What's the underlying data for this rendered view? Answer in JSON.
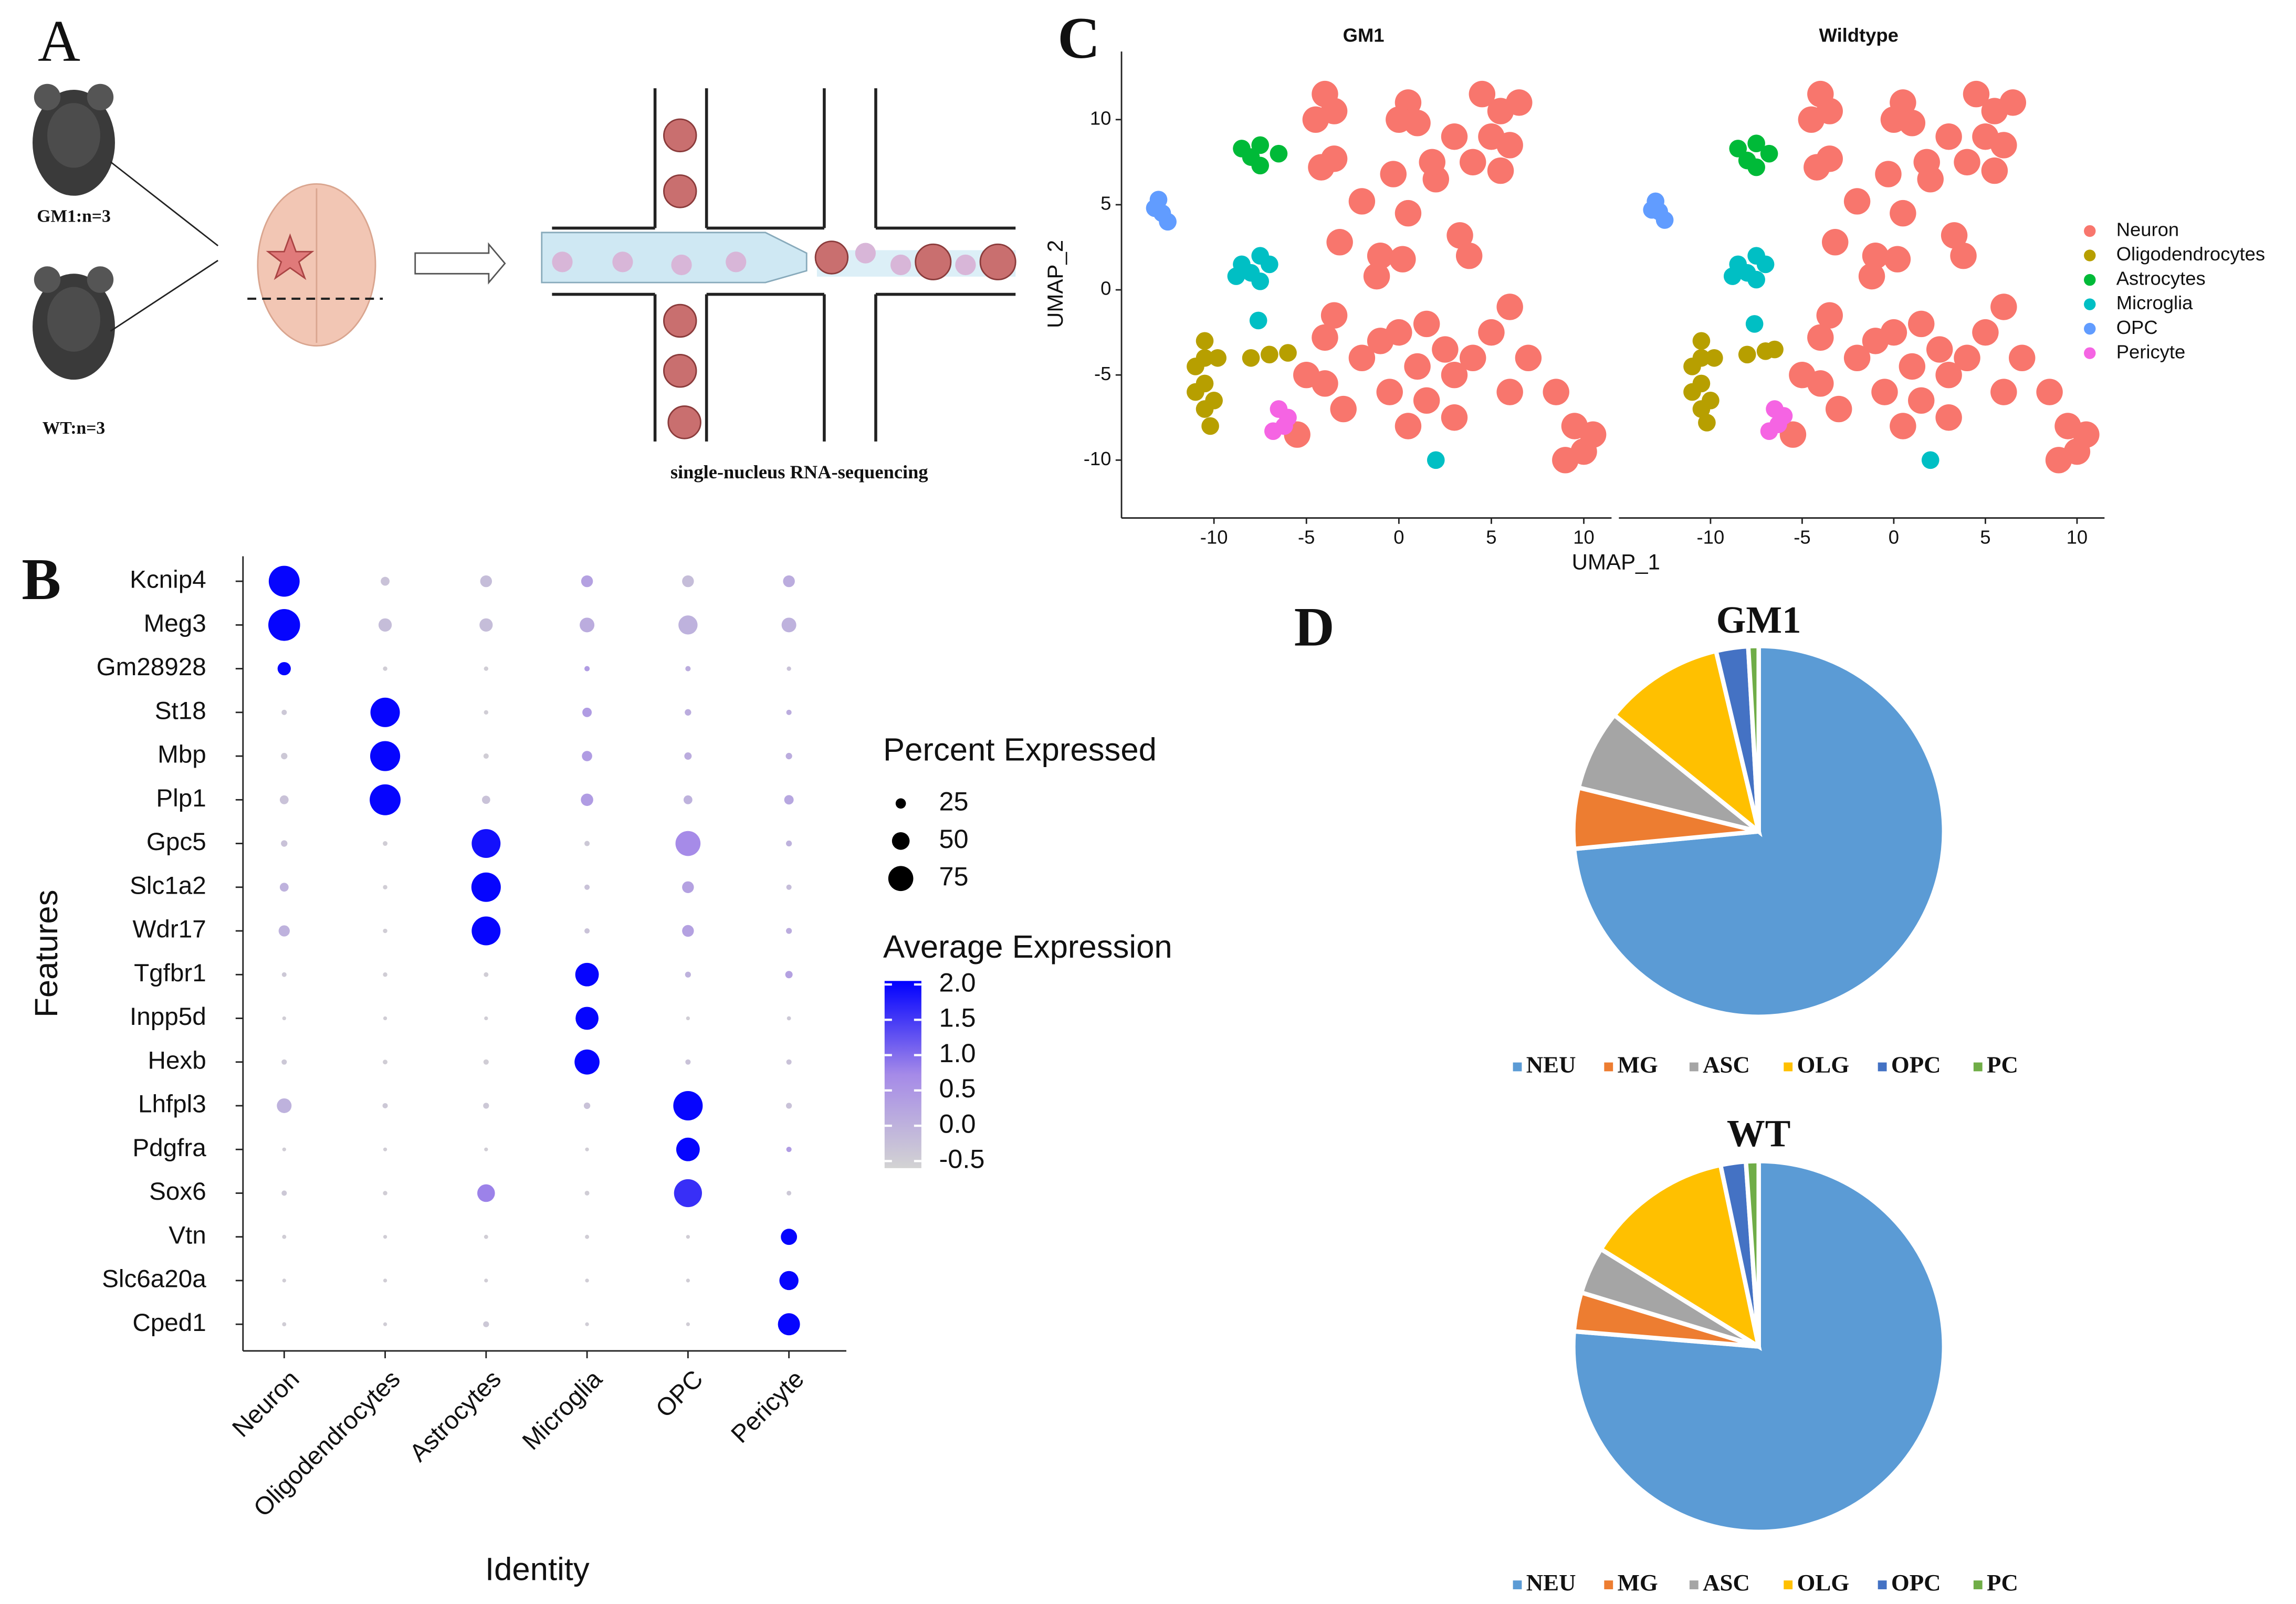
{
  "labels": {
    "panel_a": "A",
    "panel_b": "B",
    "panel_c": "C",
    "panel_d": "D",
    "gm1_group": "GM1:n=3",
    "wt_group": "WT:n=3",
    "sequencing": "single-nucleus RNA-sequencing"
  },
  "chart_data": [
    {
      "type": "dot",
      "x_label": "Identity",
      "y_label": "Features",
      "categories": [
        "Neuron",
        "Oligodendrocytes",
        "Astrocytes",
        "Microglia",
        "OPC",
        "Pericyte"
      ],
      "features": [
        "Kcnip4",
        "Meg3",
        "Gm28928",
        "St18",
        "Mbp",
        "Plp1",
        "Gpc5",
        "Slc1a2",
        "Wdr17",
        "Tgfbr1",
        "Inpp5d",
        "Hexb",
        "Lhfpl3",
        "Pdgfra",
        "Sox6",
        "Vtn",
        "Slc6a20a",
        "Cped1"
      ],
      "pct": [
        [
          95,
          20,
          30,
          30,
          30,
          30
        ],
        [
          98,
          35,
          35,
          40,
          55,
          40
        ],
        [
          35,
          5,
          5,
          8,
          8,
          5
        ],
        [
          8,
          90,
          5,
          22,
          12,
          8
        ],
        [
          12,
          92,
          8,
          25,
          15,
          12
        ],
        [
          20,
          95,
          18,
          32,
          20,
          22
        ],
        [
          12,
          6,
          88,
          8,
          75,
          10
        ],
        [
          20,
          5,
          90,
          8,
          30,
          8
        ],
        [
          28,
          5,
          88,
          8,
          30,
          10
        ],
        [
          6,
          5,
          6,
          70,
          10,
          15
        ],
        [
          3,
          3,
          3,
          68,
          3,
          4
        ],
        [
          8,
          6,
          8,
          75,
          8,
          8
        ],
        [
          40,
          8,
          10,
          12,
          90,
          10
        ],
        [
          3,
          3,
          3,
          3,
          70,
          8
        ],
        [
          8,
          5,
          50,
          6,
          85,
          6
        ],
        [
          4,
          3,
          4,
          4,
          3,
          45
        ],
        [
          3,
          3,
          3,
          3,
          3,
          55
        ],
        [
          4,
          3,
          10,
          3,
          3,
          65
        ]
      ],
      "avg": [
        [
          2.0,
          -0.3,
          -0.2,
          0.3,
          -0.2,
          0.1
        ],
        [
          2.0,
          -0.2,
          -0.2,
          0.1,
          0,
          0
        ],
        [
          2.0,
          -0.5,
          -0.5,
          0.4,
          0.1,
          -0.3
        ],
        [
          -0.4,
          2.0,
          -0.5,
          0.4,
          0.1,
          0.1
        ],
        [
          -0.4,
          2.0,
          -0.5,
          0.4,
          0.1,
          0.1
        ],
        [
          -0.3,
          2.0,
          -0.3,
          0.4,
          0,
          0.2
        ],
        [
          -0.3,
          -0.5,
          1.9,
          -0.4,
          0.7,
          0
        ],
        [
          0,
          -0.5,
          2.0,
          -0.3,
          0.3,
          -0.2
        ],
        [
          0,
          -0.5,
          2.0,
          -0.3,
          0.3,
          0.1
        ],
        [
          -0.4,
          -0.5,
          -0.5,
          2.0,
          0,
          0.3
        ],
        [
          -0.5,
          -0.5,
          -0.5,
          2.0,
          -0.5,
          -0.4
        ],
        [
          -0.4,
          -0.5,
          -0.5,
          2.0,
          -0.3,
          -0.3
        ],
        [
          0,
          -0.4,
          -0.4,
          -0.3,
          2.0,
          -0.3
        ],
        [
          -0.5,
          -0.5,
          -0.5,
          -0.5,
          2.0,
          0.4
        ],
        [
          -0.4,
          -0.5,
          0.8,
          -0.5,
          1.6,
          -0.4
        ],
        [
          -0.5,
          -0.5,
          -0.5,
          -0.5,
          -0.5,
          2.0
        ],
        [
          -0.5,
          -0.5,
          -0.5,
          -0.5,
          -0.5,
          2.0
        ],
        [
          -0.5,
          -0.5,
          -0.4,
          -0.5,
          -0.5,
          2.0
        ]
      ],
      "size_legend": {
        "title": "Percent Expressed",
        "values": [
          25,
          50,
          75
        ]
      },
      "color_legend": {
        "title": "Average Expression",
        "clim": [
          -0.6,
          2.05
        ],
        "colors": [
          "#d3d3d3",
          "#a58ae8",
          "#0000ff"
        ],
        "ticks": [
          {
            "value": 2,
            "label": "2.0"
          },
          1.5,
          {
            "value": 1,
            "label": "1.0"
          },
          0.5,
          {
            "value": 0,
            "label": "0.0"
          },
          -0.5
        ]
      }
    },
    {
      "type": "scatter",
      "title": "GM1",
      "x_label": "UMAP_1",
      "y_label": "UMAP_2",
      "xlim": [
        -15,
        11.5
      ],
      "ylim": [
        -13.4,
        14
      ],
      "xticks": [
        -10,
        -5,
        0,
        5,
        10
      ],
      "yticks": [
        -10,
        -5,
        0,
        5,
        10
      ],
      "series": [
        {
          "name": "Neuron",
          "color": "#F8766D",
          "x": [
            -4,
            -4.5,
            -3.5,
            0.5,
            0,
            1,
            4.5,
            5.5,
            6.5,
            5,
            6,
            4,
            5.5,
            3,
            2,
            1.8,
            -3.5,
            -4.2,
            -0.3,
            -1,
            -1.2,
            -3.2,
            0.2,
            3.3,
            3.8,
            -3.5,
            -4,
            -2,
            -1,
            0,
            1.5,
            2.5,
            1,
            3,
            4,
            5,
            6,
            7,
            -0.5,
            1.5,
            -3,
            -4,
            -5.5,
            0.5,
            3,
            8.5,
            9.5,
            10,
            9,
            10.5,
            -2,
            0.5,
            -5,
            6
          ],
          "values": [
            11.5,
            10,
            10.5,
            11,
            10,
            9.8,
            11.5,
            10.5,
            11,
            9,
            8.5,
            7.5,
            7,
            9,
            6.5,
            7.5,
            7.7,
            7.2,
            6.8,
            2,
            0.8,
            2.8,
            1.8,
            3.2,
            2,
            -1.5,
            -2.8,
            -4,
            -3,
            -2.5,
            -2,
            -3.5,
            -4.5,
            -5,
            -4,
            -2.5,
            -1,
            -4,
            -6,
            -6.5,
            -7,
            -5.5,
            -8.5,
            -8,
            -7.5,
            -6,
            -8,
            -9.5,
            -10,
            -8.5,
            5.2,
            4.5,
            -5,
            -6
          ]
        },
        {
          "name": "Oligodendrocytes",
          "color": "#B79F00",
          "x": [
            -10.5,
            -10.5,
            -10.5,
            -10.5,
            -11,
            -10,
            -11,
            -9.8,
            -10.2,
            -7,
            -8,
            -6
          ],
          "values": [
            -3,
            -4,
            -5.5,
            -7,
            -6,
            -6.5,
            -4.5,
            -4,
            -8,
            -3.8,
            -4,
            -3.7
          ]
        },
        {
          "name": "Astrocytes",
          "color": "#00BA38",
          "x": [
            -8.5,
            -7.5,
            -6.5,
            -7.5,
            -8
          ],
          "values": [
            8.3,
            8.5,
            8,
            7.3,
            7.8
          ]
        },
        {
          "name": "Microglia",
          "color": "#00BFC4",
          "x": [
            -8.5,
            -7.5,
            -8,
            -7,
            -8.8,
            -7.5,
            -7.6,
            2
          ],
          "values": [
            1.5,
            2,
            1,
            1.5,
            0.8,
            0.5,
            -1.8,
            -10
          ]
        },
        {
          "name": "OPC",
          "color": "#619CFF",
          "x": [
            -13,
            -12.8,
            -12.5,
            -13.2
          ],
          "values": [
            5.3,
            4.5,
            4,
            4.8
          ]
        },
        {
          "name": "Pericyte",
          "color": "#F564E3",
          "x": [
            -6.5,
            -6.2,
            -6.8,
            -6
          ],
          "values": [
            -7,
            -8,
            -8.3,
            -7.5
          ]
        }
      ]
    },
    {
      "type": "scatter",
      "title": "Wildtype",
      "xlim": [
        -15,
        11.5
      ],
      "ylim": [
        -13.4,
        14
      ],
      "xticks": [
        -10,
        -5,
        0,
        5,
        10
      ],
      "series": [
        {
          "name": "Neuron",
          "color": "#F8766D",
          "x": [
            -4,
            -4.5,
            -3.5,
            0.5,
            0,
            1,
            4.5,
            5.5,
            6.5,
            5,
            6,
            4,
            5.5,
            3,
            2,
            1.8,
            -3.5,
            -4.2,
            -0.3,
            -1,
            -1.2,
            -3.2,
            0.2,
            3.3,
            3.8,
            -3.5,
            -4,
            -2,
            -1,
            0,
            1.5,
            2.5,
            1,
            3,
            4,
            5,
            6,
            7,
            -0.5,
            1.5,
            -3,
            -4,
            -5.5,
            0.5,
            3,
            8.5,
            9.5,
            10,
            9,
            10.5,
            -2,
            0.5,
            -5,
            6
          ],
          "values": [
            11.5,
            10,
            10.5,
            11,
            10,
            9.8,
            11.5,
            10.5,
            11,
            9,
            8.5,
            7.5,
            7,
            9,
            6.5,
            7.5,
            7.7,
            7.2,
            6.8,
            2,
            0.8,
            2.8,
            1.8,
            3.2,
            2,
            -1.5,
            -2.8,
            -4,
            -3,
            -2.5,
            -2,
            -3.5,
            -4.5,
            -5,
            -4,
            -2.5,
            -1,
            -4,
            -6,
            -6.5,
            -7,
            -5.5,
            -8.5,
            -8,
            -7.5,
            -6,
            -8,
            -9.5,
            -10,
            -8.5,
            5.2,
            4.5,
            -5,
            -6
          ]
        },
        {
          "name": "Oligodendrocytes",
          "color": "#B79F00",
          "x": [
            -10.5,
            -10.5,
            -10.5,
            -10.5,
            -11,
            -10,
            -11,
            -9.8,
            -10.2,
            -7,
            -8,
            -6.5
          ],
          "values": [
            -3,
            -4,
            -5.5,
            -7,
            -6,
            -6.5,
            -4.5,
            -4,
            -7.8,
            -3.6,
            -3.8,
            -3.5
          ]
        },
        {
          "name": "Astrocytes",
          "color": "#00BA38",
          "x": [
            -8.5,
            -7.5,
            -6.8,
            -7.5,
            -8
          ],
          "values": [
            8.3,
            8.6,
            8,
            7.2,
            7.6
          ]
        },
        {
          "name": "Microglia",
          "color": "#00BFC4",
          "x": [
            -8.5,
            -7.5,
            -8,
            -7,
            -8.8,
            -7.5,
            -7.6,
            2
          ],
          "values": [
            1.5,
            2,
            1,
            1.5,
            0.8,
            0.6,
            -2,
            -10
          ]
        },
        {
          "name": "OPC",
          "color": "#619CFF",
          "x": [
            -13,
            -12.8,
            -12.5,
            -13.2
          ],
          "values": [
            5.2,
            4.6,
            4.1,
            4.7
          ]
        },
        {
          "name": "Pericyte",
          "color": "#F564E3",
          "x": [
            -6.5,
            -6.3,
            -6.8,
            -6
          ],
          "values": [
            -7,
            -7.9,
            -8.3,
            -7.4
          ]
        }
      ]
    },
    {
      "type": "pie",
      "title": "GM1",
      "categories": [
        "NEU",
        "MG",
        "ASC",
        "OLG",
        "OPC",
        "PC"
      ],
      "values": [
        73.5,
        5.3,
        7,
        10.5,
        2.8,
        0.9
      ],
      "colors": [
        "#5B9BD5",
        "#ED7D31",
        "#A5A5A5",
        "#FFC000",
        "#4472C4",
        "#70AD47"
      ]
    },
    {
      "type": "pie",
      "title": "WT",
      "categories": [
        "NEU",
        "MG",
        "ASC",
        "OLG",
        "OPC",
        "PC"
      ],
      "values": [
        76.3,
        3.4,
        4.1,
        12.9,
        2.2,
        1.1
      ],
      "colors": [
        "#5B9BD5",
        "#ED7D31",
        "#A5A5A5",
        "#FFC000",
        "#4472C4",
        "#70AD47"
      ]
    }
  ]
}
